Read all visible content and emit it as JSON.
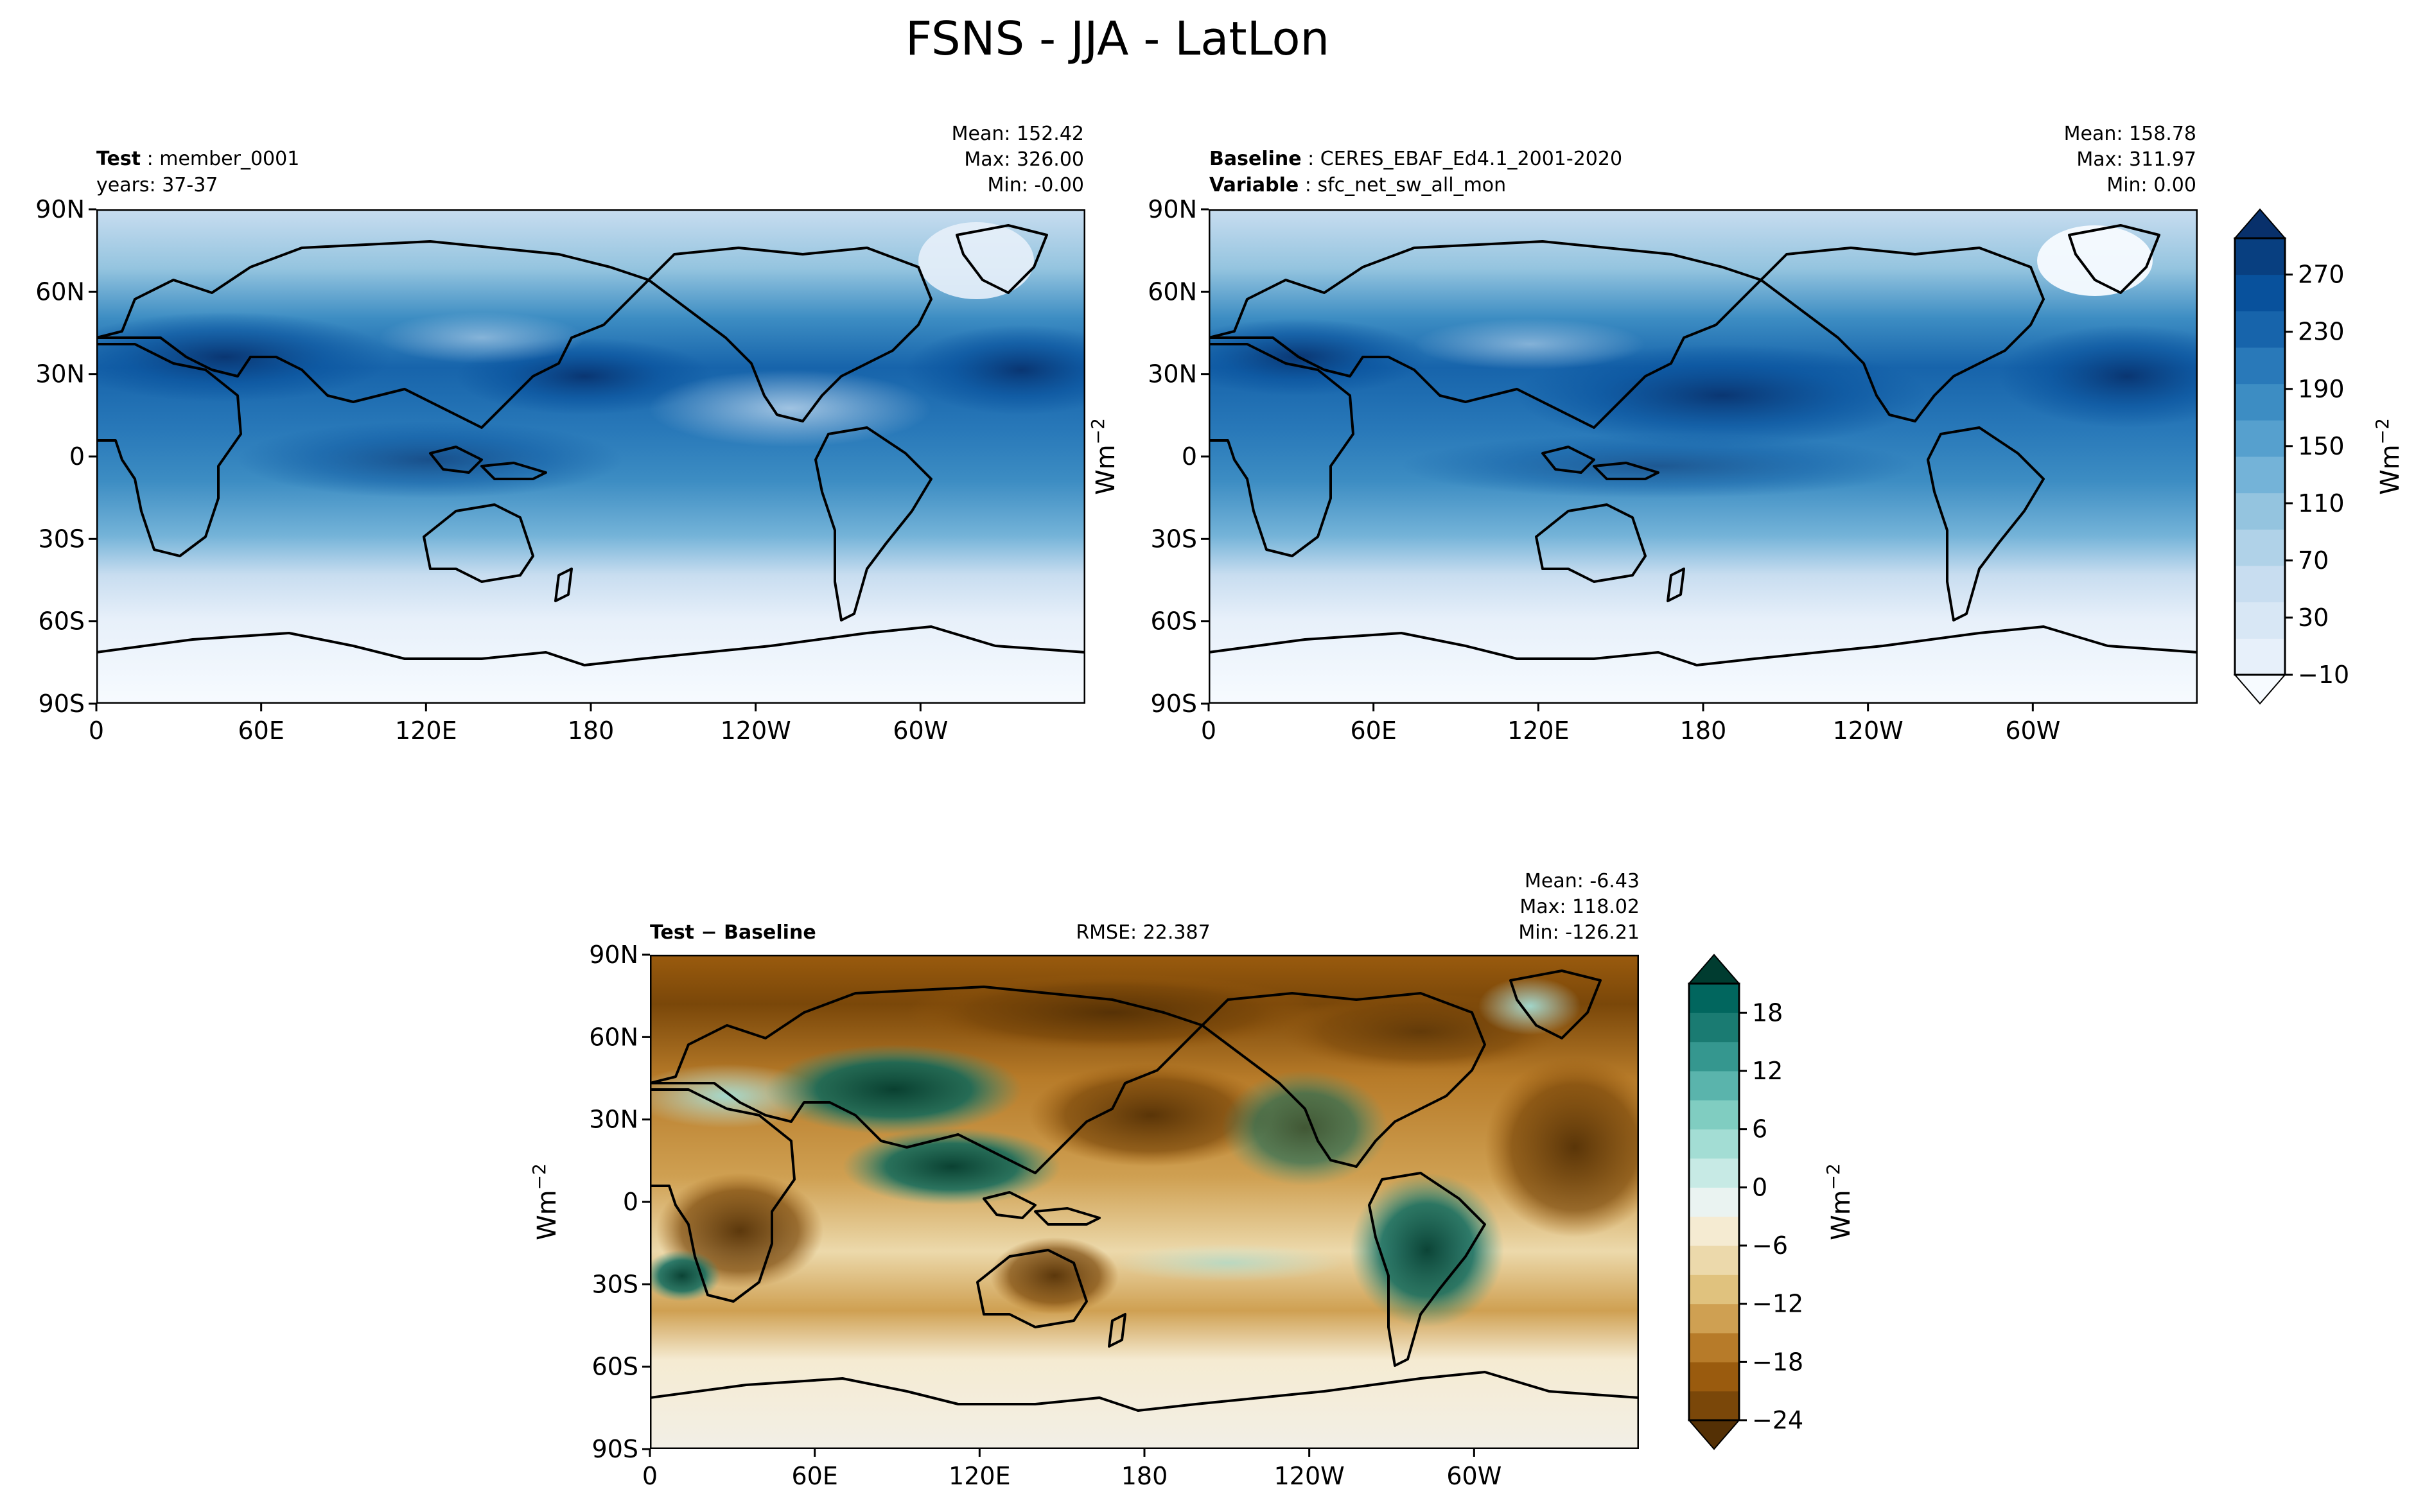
{
  "figure_title": "FSNS - JJA - LatLon",
  "unit_label": "Wm",
  "unit_exponent": "−2",
  "lat_ticks": [
    "90N",
    "60N",
    "30N",
    "0",
    "30S",
    "60S",
    "90S"
  ],
  "lon_ticks": [
    "0",
    "60E",
    "120E",
    "180",
    "120W",
    "60W"
  ],
  "panels": {
    "test": {
      "name_label": "Test",
      "name_value": "member_0001",
      "years": "years: 37-37",
      "mean": "Mean: 152.42",
      "max": "Max: 326.00",
      "min": "Min: -0.00"
    },
    "baseline": {
      "name_label": "Baseline",
      "name_value": "CERES_EBAF_Ed4.1_2001-2020",
      "variable_label": "Variable",
      "variable_value": "sfc_net_sw_all_mon",
      "mean": "Mean: 158.78",
      "max": "Max: 311.97",
      "min": "Min:  0.00"
    },
    "diff": {
      "title_left": "Test",
      "title_op": "−",
      "title_right": "Baseline",
      "rmse": "RMSE: 22.387",
      "mean": "Mean: -6.43",
      "max": "Max: 118.02",
      "min": "Min: -126.21"
    }
  },
  "colorbar_top": {
    "ticks": [
      "270",
      "230",
      "190",
      "150",
      "110",
      "70",
      "30",
      "−10"
    ],
    "colors": [
      "#f7fbff",
      "#e7f0fa",
      "#d8e7f5",
      "#c8ddf0",
      "#b0d2e8",
      "#94c4df",
      "#74b3d8",
      "#56a0ce",
      "#3d8dc3",
      "#2979b9",
      "#1764ab",
      "#08519c",
      "#083f80",
      "#08306b"
    ]
  },
  "colorbar_diff": {
    "ticks": [
      "18",
      "12",
      "6",
      "0",
      "−6",
      "−12",
      "−18",
      "−24"
    ],
    "colors": [
      "#543005",
      "#7a4709",
      "#9a5b0e",
      "#b77b29",
      "#cfa052",
      "#e0c27e",
      "#ecd9ab",
      "#f5ebd2",
      "#eaf3f1",
      "#c7eae5",
      "#a3ddd4",
      "#80cdc1",
      "#5ab4ac",
      "#35978f",
      "#1a7b72",
      "#01665e",
      "#003c30"
    ]
  },
  "chart_data": [
    {
      "type": "heatmap",
      "panel": "test",
      "title": "member_0001",
      "x_range": [
        0,
        360
      ],
      "y_range": [
        -90,
        90
      ],
      "x_ticks": [
        "0",
        "60E",
        "120E",
        "180",
        "120W",
        "60W"
      ],
      "y_ticks": [
        "90N",
        "60N",
        "30N",
        "0",
        "30S",
        "60S",
        "90S"
      ],
      "mean": 152.42,
      "max": 326.0,
      "min": -0.0,
      "color_levels": [
        -10,
        10,
        30,
        50,
        70,
        90,
        110,
        130,
        150,
        170,
        190,
        210,
        230,
        250,
        270,
        290
      ],
      "colormap": "Blues"
    },
    {
      "type": "heatmap",
      "panel": "baseline",
      "title": "CERES_EBAF_Ed4.1_2001-2020",
      "x_range": [
        0,
        360
      ],
      "y_range": [
        -90,
        90
      ],
      "mean": 158.78,
      "max": 311.97,
      "min": 0.0,
      "colormap": "Blues"
    },
    {
      "type": "heatmap",
      "panel": "diff",
      "x_range": [
        0,
        360
      ],
      "y_range": [
        -90,
        90
      ],
      "mean": -6.43,
      "max": 118.02,
      "min": -126.21,
      "rmse": 22.387,
      "color_levels": [
        -24,
        -21,
        -18,
        -15,
        -12,
        -9,
        -6,
        -3,
        0,
        3,
        6,
        9,
        12,
        15,
        18,
        21
      ],
      "colormap": "BrBG"
    }
  ]
}
